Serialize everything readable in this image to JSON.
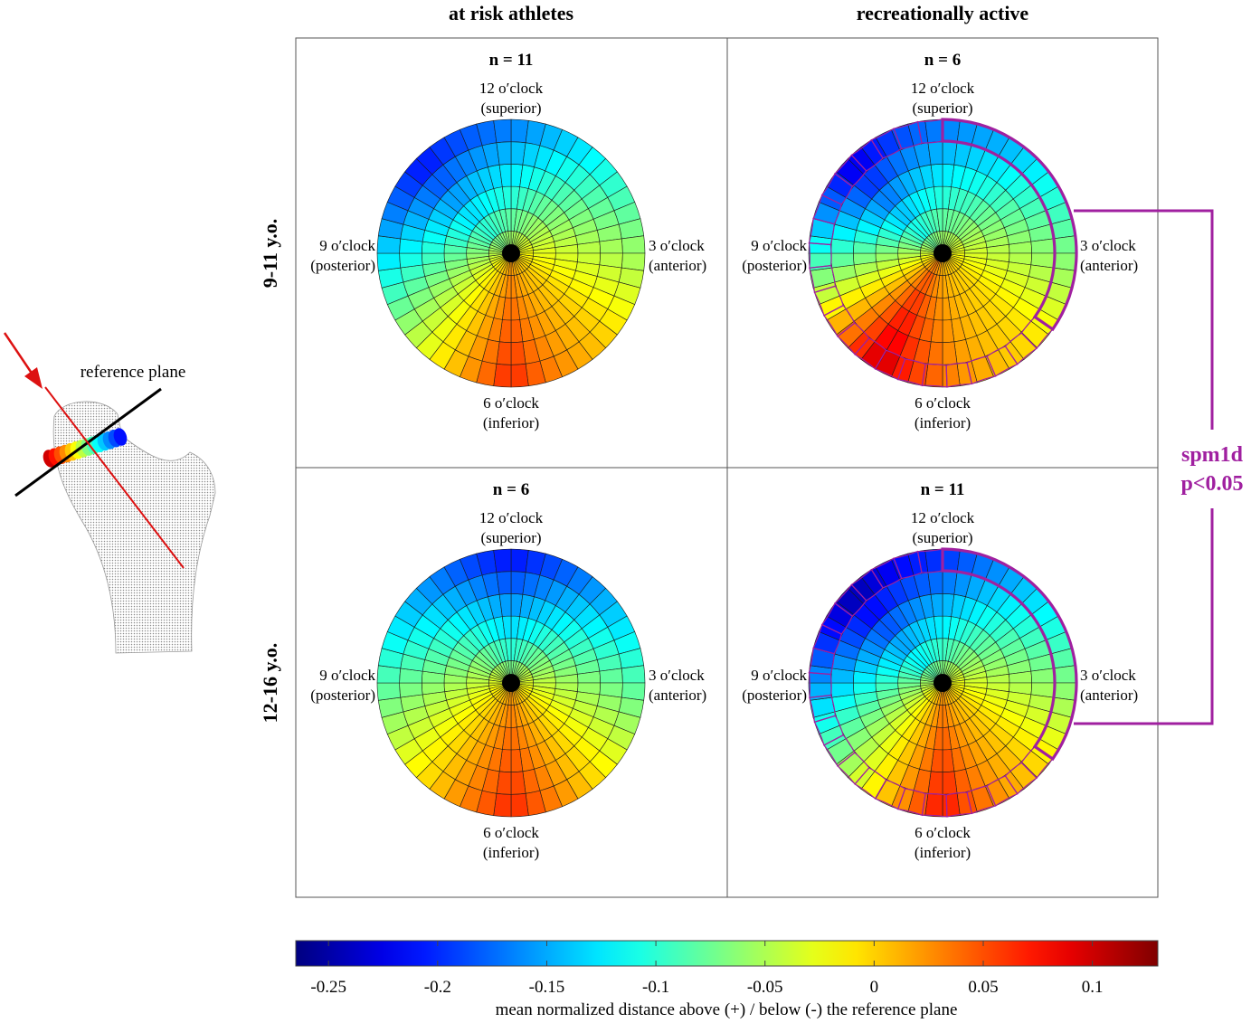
{
  "columns": [
    "at risk athletes",
    "recreationally active"
  ],
  "rows": [
    "9-11 y.o.",
    "12-16 y.o."
  ],
  "clock_labels": {
    "top": [
      "12 o′clock",
      "(superior)"
    ],
    "right": [
      "3 o′clock",
      "(anterior)"
    ],
    "bottom": [
      "6 o′clock",
      "(inferior)"
    ],
    "left": [
      "9 o′clock",
      "(posterior)"
    ]
  },
  "femur_label": "reference plane",
  "stat_label": [
    "spm1d",
    "p<0.05"
  ],
  "colors": {
    "significance": "#a020a0",
    "femur_axis": "#dd1111",
    "plane_line": "#000000"
  },
  "chart_data": {
    "type": "heatmap",
    "projection": "polar clock-face map",
    "colormap": "jet",
    "clim": [
      -0.265,
      0.13
    ],
    "colorbar": {
      "ticks": [
        -0.25,
        -0.2,
        -0.15,
        -0.1,
        -0.05,
        0,
        0.05,
        0.1
      ],
      "tick_labels": [
        "-0.25",
        "-0.2",
        "-0.15",
        "-0.1",
        "-0.05",
        "0",
        "0.05",
        "0.1"
      ],
      "label": "mean normalized distance above (+) / below (-) the reference plane"
    },
    "panels": [
      {
        "row": "9-11 y.o.",
        "column": "at risk athletes",
        "n_label": "n = 11",
        "min_value": -0.22,
        "min_clock": 10.5,
        "max_value": 0.07,
        "max_clock": 6,
        "significant_hours": null
      },
      {
        "row": "9-11 y.o.",
        "column": "recreationally active",
        "n_label": "n = 6",
        "min_value": -0.24,
        "min_clock": 10.5,
        "max_value": 0.11,
        "max_clock": 7,
        "significant_hours": [
          12,
          4
        ]
      },
      {
        "row": "12-16 y.o.",
        "column": "at risk athletes",
        "n_label": "n = 6",
        "min_value": -0.22,
        "min_clock": 12,
        "max_value": 0.07,
        "max_clock": 6,
        "significant_hours": null
      },
      {
        "row": "12-16 y.o.",
        "column": "recreationally active",
        "n_label": "n = 11",
        "min_value": -0.26,
        "min_clock": 10.5,
        "max_value": 0.08,
        "max_clock": 6,
        "significant_hours": [
          12,
          4
        ]
      }
    ]
  }
}
